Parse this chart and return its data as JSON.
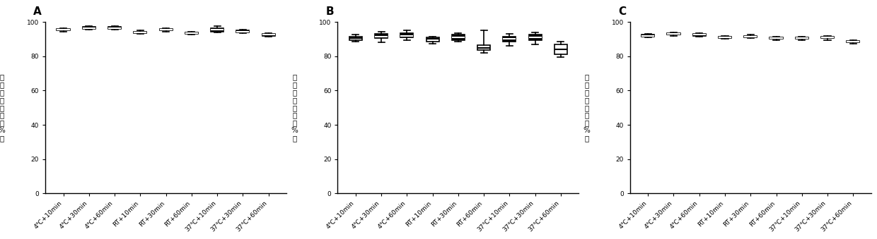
{
  "categories": [
    "4℃+10min",
    "4℃+30min",
    "4℃+60min",
    "RT+10min",
    "RT+30min",
    "RT+60min",
    "37℃+10min",
    "37℃+30min",
    "37℃+60min"
  ],
  "panel_labels": [
    "A",
    "B",
    "C"
  ],
  "ylabel": "拷贝数下降率（%）",
  "ylim": [
    0,
    100
  ],
  "yticks": [
    0,
    20,
    40,
    60,
    80,
    100
  ],
  "panels": {
    "A": {
      "medians": [
        95.5,
        96.5,
        96.5,
        94.0,
        95.5,
        93.5,
        95.5,
        94.5,
        92.5
      ],
      "q1": [
        95.0,
        96.0,
        96.0,
        93.5,
        95.0,
        93.0,
        94.5,
        94.0,
        92.0
      ],
      "q3": [
        96.0,
        97.0,
        97.0,
        94.5,
        96.0,
        94.0,
        96.5,
        95.0,
        93.0
      ],
      "whislo": [
        94.5,
        95.5,
        95.5,
        93.0,
        94.5,
        92.5,
        94.0,
        93.5,
        91.5
      ],
      "whishi": [
        96.5,
        97.5,
        97.5,
        95.0,
        96.5,
        94.5,
        97.5,
        95.5,
        93.5
      ],
      "open_indices": []
    },
    "B": {
      "medians": [
        90.5,
        91.5,
        92.0,
        90.0,
        91.0,
        85.0,
        90.0,
        91.0,
        84.0
      ],
      "q1": [
        89.5,
        90.5,
        91.0,
        88.5,
        89.5,
        83.5,
        88.5,
        89.5,
        81.0
      ],
      "q3": [
        91.5,
        93.0,
        93.5,
        91.0,
        92.5,
        86.5,
        91.5,
        92.5,
        87.0
      ],
      "whislo": [
        88.5,
        88.0,
        89.5,
        87.5,
        88.5,
        82.0,
        86.0,
        87.0,
        79.5
      ],
      "whishi": [
        92.5,
        94.5,
        95.0,
        91.5,
        93.5,
        95.0,
        93.0,
        94.0,
        88.5
      ],
      "open_indices": [
        0,
        3,
        5,
        8
      ]
    },
    "C": {
      "medians": [
        92.0,
        93.0,
        92.5,
        91.0,
        91.5,
        90.5,
        90.5,
        91.0,
        88.5
      ],
      "q1": [
        91.5,
        92.5,
        92.0,
        90.5,
        91.0,
        90.0,
        90.0,
        90.5,
        88.0
      ],
      "q3": [
        92.5,
        93.5,
        93.0,
        91.5,
        92.0,
        91.0,
        91.0,
        91.5,
        89.0
      ],
      "whislo": [
        91.0,
        92.0,
        91.5,
        90.0,
        90.5,
        89.5,
        89.5,
        89.5,
        87.5
      ],
      "whishi": [
        93.0,
        94.0,
        93.5,
        92.0,
        92.5,
        91.5,
        91.5,
        92.0,
        89.5
      ],
      "open_indices": []
    }
  },
  "background_color": "#ffffff",
  "linewidth": 1.2,
  "box_width": 0.5,
  "tick_fontsize": 6.5,
  "ylabel_fontsize": 7.5,
  "panel_label_fontsize": 11
}
